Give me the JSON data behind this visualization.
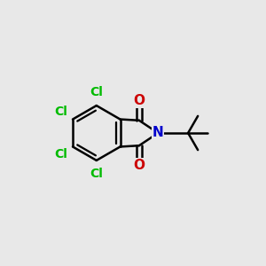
{
  "bg_color": "#e8e8e8",
  "bond_color": "#000000",
  "bond_width": 1.8,
  "atom_colors": {
    "N": "#0000cc",
    "O": "#cc0000",
    "Cl": "#00bb00"
  },
  "font_size_atom": 11,
  "font_size_cl": 10,
  "fig_size": [
    3.0,
    3.0
  ],
  "dpi": 100
}
